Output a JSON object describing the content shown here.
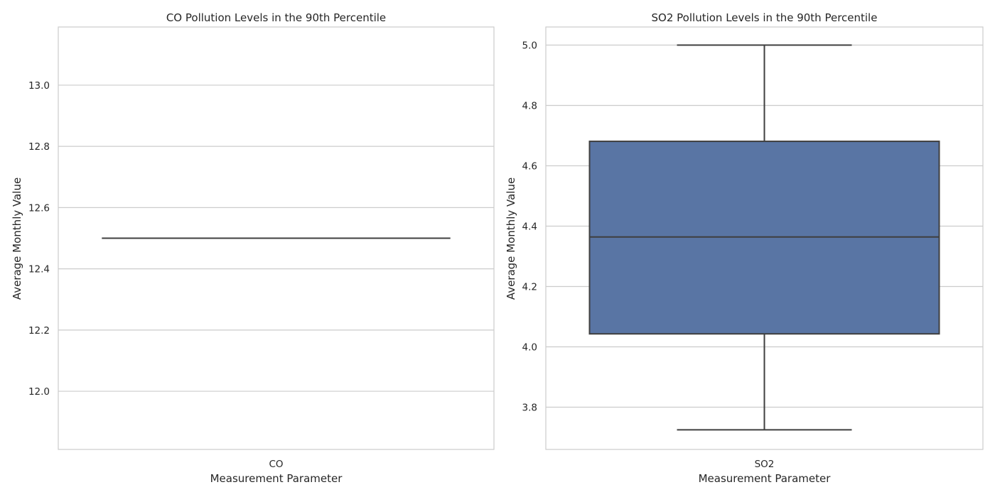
{
  "chart_data": [
    {
      "type": "box",
      "title": "CO Pollution Levels in the 90th Percentile",
      "xlabel": "Measurement Parameter",
      "ylabel": "Average Monthly Value",
      "categories": [
        "CO"
      ],
      "ylim": [
        11.81,
        13.19
      ],
      "yticks": [
        12.0,
        12.2,
        12.4,
        12.6,
        12.8,
        13.0
      ],
      "ytick_labels": [
        "12.0",
        "12.2",
        "12.4",
        "12.6",
        "12.8",
        "13.0"
      ],
      "grid": true,
      "box": {
        "min": 12.5,
        "q1": 12.5,
        "median": 12.5,
        "q3": 12.5,
        "max": 12.5
      },
      "color": "#4c72b0"
    },
    {
      "type": "box",
      "title": "SO2 Pollution Levels in the 90th Percentile",
      "xlabel": "Measurement Parameter",
      "ylabel": "Average Monthly Value",
      "categories": [
        "SO2"
      ],
      "ylim": [
        3.66,
        5.06
      ],
      "yticks": [
        3.8,
        4.0,
        4.2,
        4.4,
        4.6,
        4.8,
        5.0
      ],
      "ytick_labels": [
        "3.8",
        "4.0",
        "4.2",
        "4.4",
        "4.6",
        "4.8",
        "5.0"
      ],
      "grid": true,
      "box": {
        "min": 3.725,
        "q1": 4.043,
        "median": 4.364,
        "q3": 4.681,
        "max": 5.0
      },
      "color": "#5975a4"
    }
  ]
}
